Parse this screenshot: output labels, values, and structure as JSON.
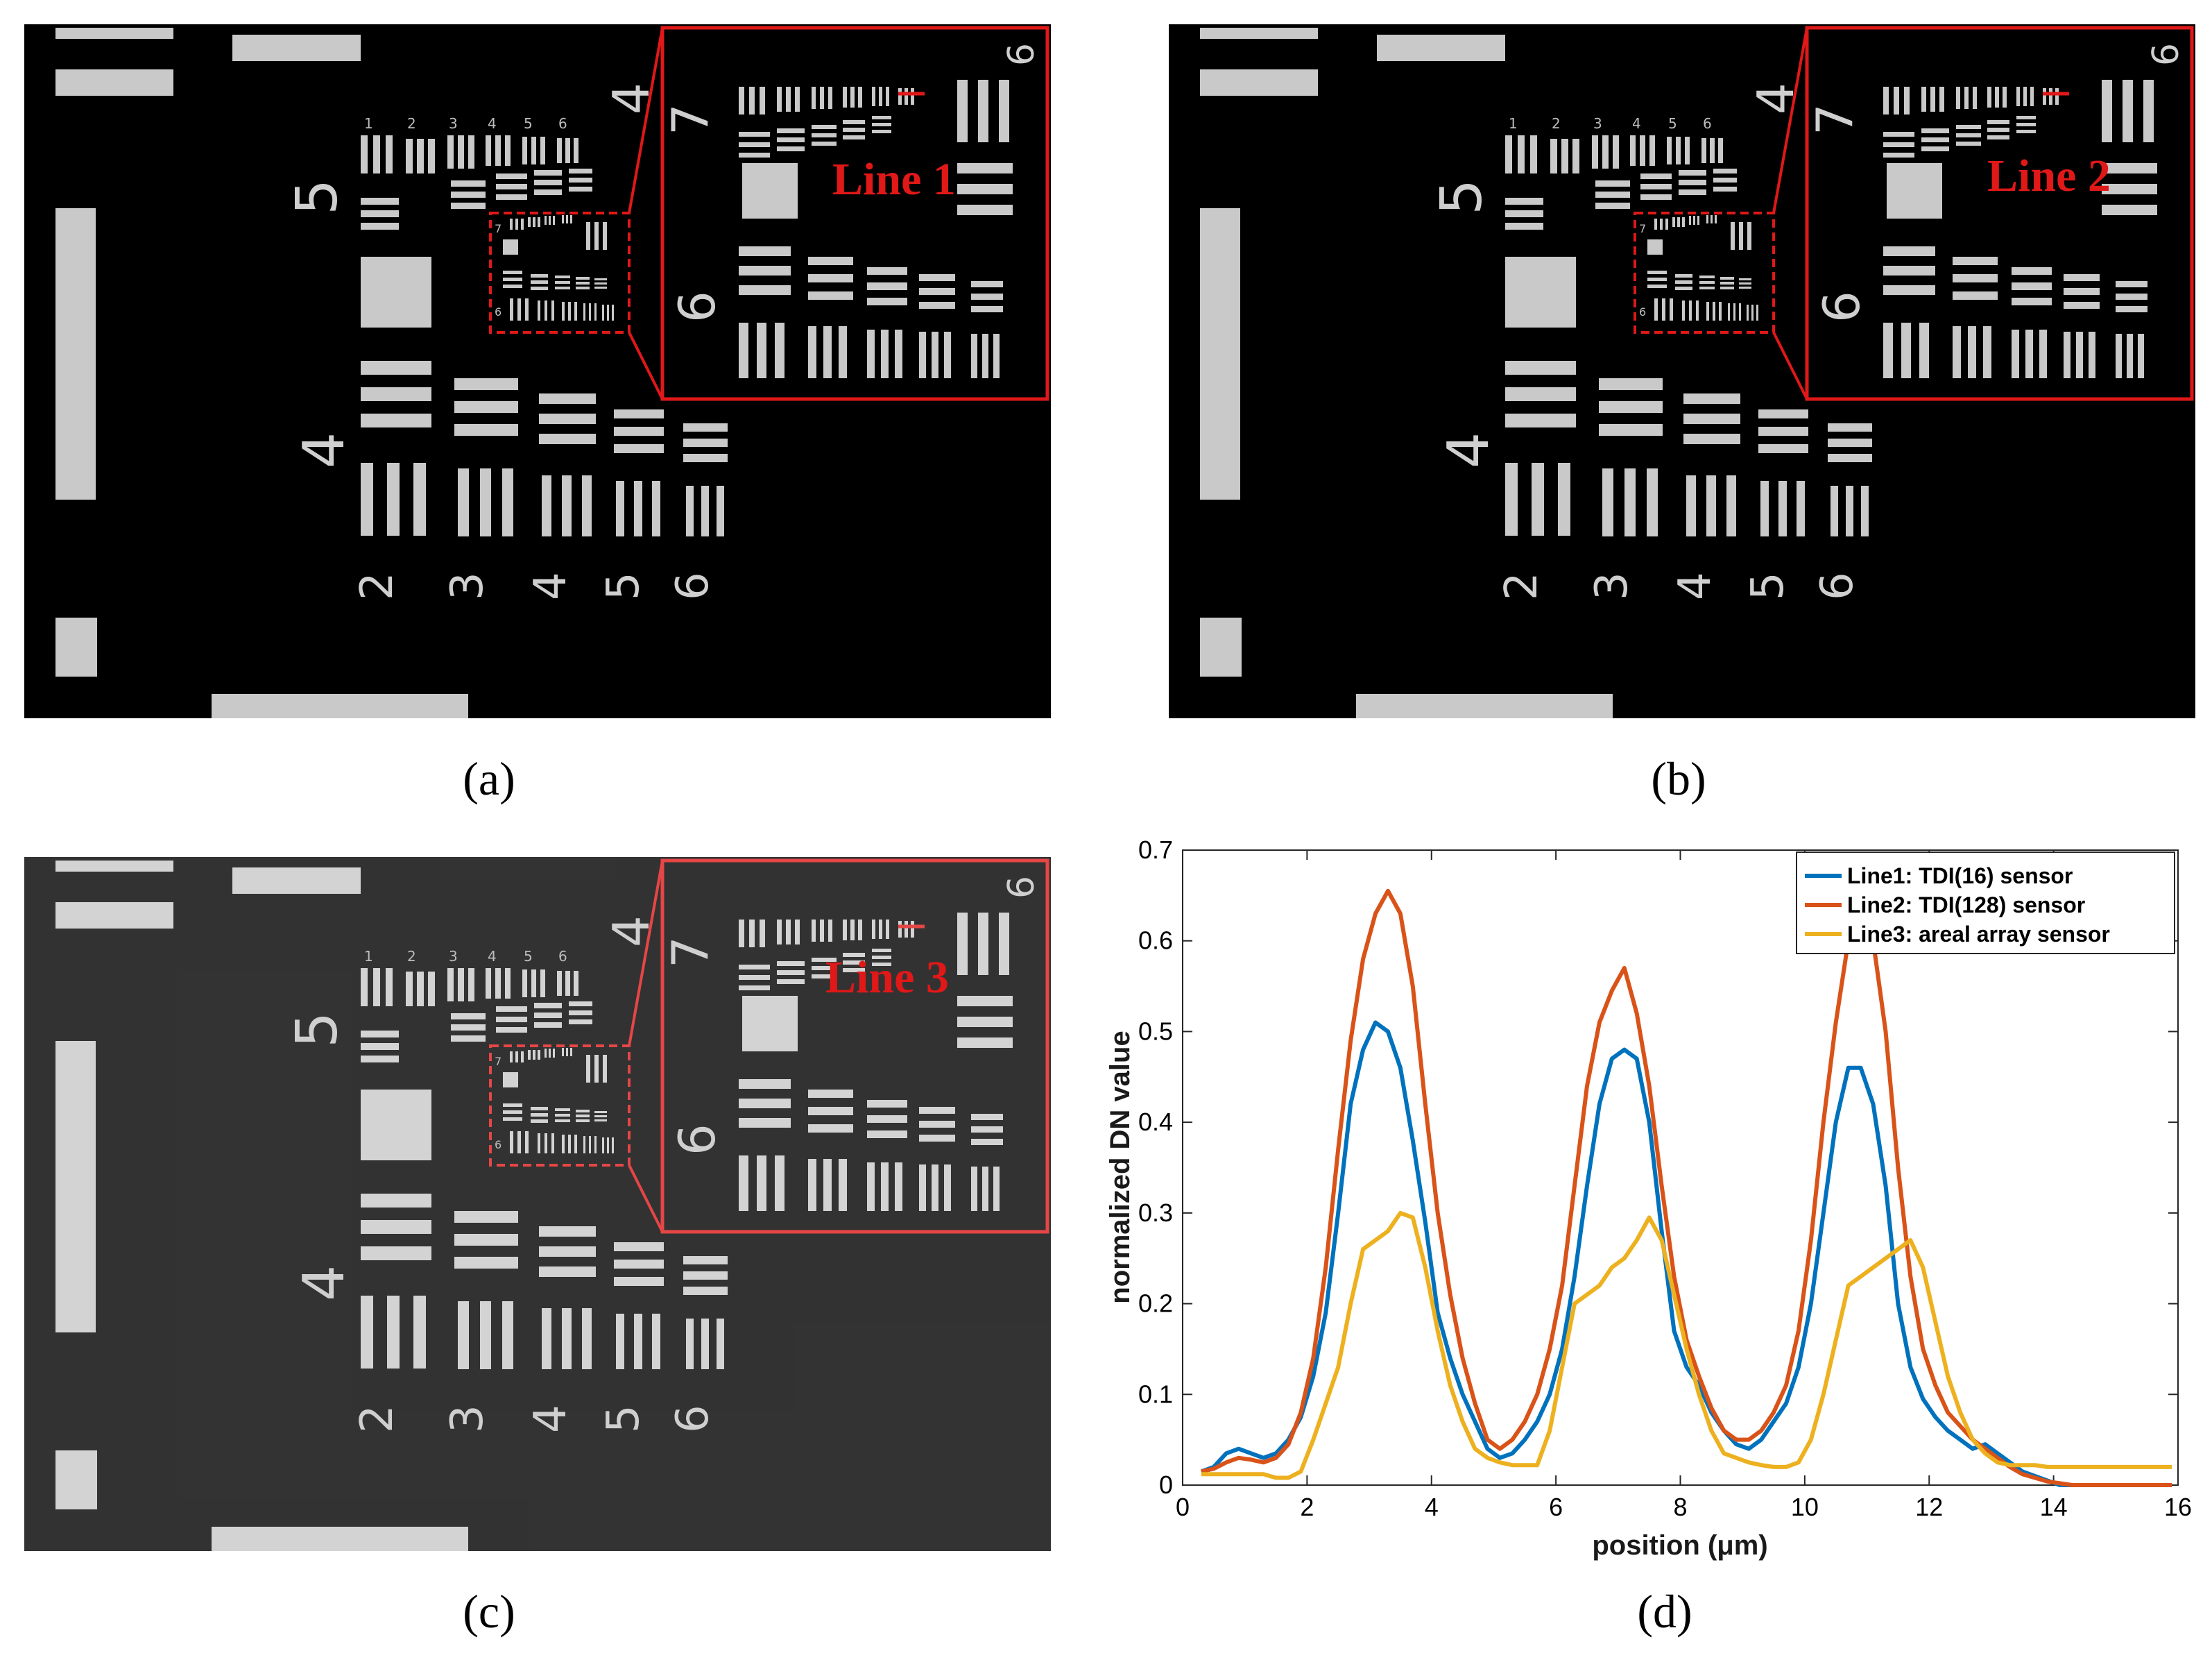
{
  "panels": [
    {
      "id": "a",
      "caption": "(a)",
      "line_label": "Line 1"
    },
    {
      "id": "b",
      "caption": "(b)",
      "line_label": "Line 2"
    },
    {
      "id": "c",
      "caption": "(c)",
      "line_label": "Line 3"
    }
  ],
  "target": {
    "groups": [
      "2",
      "3",
      "4",
      "5",
      "6"
    ],
    "row_digits": [
      "1",
      "2",
      "3",
      "4",
      "5",
      "6"
    ],
    "group_5": "5",
    "group_4": "4",
    "inset_7": "7",
    "inset_6": "6",
    "inset_6b": "6",
    "inset_4": "4",
    "mini_7": "7",
    "mini_6": "6"
  },
  "colors": {
    "line1": "#0072BD",
    "line2": "#D95319",
    "line3": "#EDB120",
    "annotation": "#e01818"
  },
  "chart_data": {
    "type": "line",
    "caption": "(d)",
    "xlabel": "position (μm)",
    "ylabel": "normalized DN value",
    "xlim": [
      0,
      16
    ],
    "ylim": [
      0,
      0.7
    ],
    "xticks": [
      0,
      2,
      4,
      6,
      8,
      10,
      12,
      14,
      16
    ],
    "yticks": [
      0,
      0.1,
      0.2,
      0.3,
      0.4,
      0.5,
      0.6,
      0.7
    ],
    "legend_position": "top-right",
    "x": [
      0.3,
      0.5,
      0.7,
      0.9,
      1.1,
      1.3,
      1.5,
      1.7,
      1.9,
      2.1,
      2.3,
      2.5,
      2.7,
      2.9,
      3.1,
      3.3,
      3.5,
      3.7,
      3.9,
      4.1,
      4.3,
      4.5,
      4.7,
      4.9,
      5.1,
      5.3,
      5.5,
      5.7,
      5.9,
      6.1,
      6.3,
      6.5,
      6.7,
      6.9,
      7.1,
      7.3,
      7.5,
      7.7,
      7.9,
      8.1,
      8.3,
      8.5,
      8.7,
      8.9,
      9.1,
      9.3,
      9.5,
      9.7,
      9.9,
      10.1,
      10.3,
      10.5,
      10.7,
      10.9,
      11.1,
      11.3,
      11.5,
      11.7,
      11.9,
      12.1,
      12.3,
      12.5,
      12.7,
      12.9,
      13.1,
      13.3,
      13.5,
      13.7,
      13.9,
      14.1,
      14.3,
      14.5,
      14.7,
      14.9,
      15.1,
      15.3,
      15.5,
      15.7,
      15.9
    ],
    "series": [
      {
        "name": "Line1: TDI(16) sensor",
        "color": "#0072BD",
        "values": [
          0.015,
          0.02,
          0.035,
          0.04,
          0.035,
          0.03,
          0.035,
          0.05,
          0.075,
          0.12,
          0.19,
          0.3,
          0.42,
          0.48,
          0.51,
          0.5,
          0.46,
          0.38,
          0.29,
          0.19,
          0.14,
          0.1,
          0.07,
          0.04,
          0.03,
          0.035,
          0.05,
          0.07,
          0.1,
          0.15,
          0.23,
          0.33,
          0.42,
          0.47,
          0.48,
          0.47,
          0.4,
          0.28,
          0.17,
          0.13,
          0.11,
          0.08,
          0.06,
          0.045,
          0.04,
          0.05,
          0.07,
          0.09,
          0.13,
          0.2,
          0.3,
          0.4,
          0.46,
          0.46,
          0.42,
          0.33,
          0.2,
          0.13,
          0.095,
          0.075,
          0.06,
          0.05,
          0.04,
          0.045,
          0.035,
          0.025,
          0.015,
          0.01,
          0.005,
          0.0,
          0.0,
          0.0,
          0.0,
          0.0,
          0.0,
          0.0,
          0.0,
          0.0,
          0.0
        ]
      },
      {
        "name": "Line2: TDI(128) sensor",
        "color": "#D95319",
        "values": [
          0.015,
          0.018,
          0.025,
          0.03,
          0.028,
          0.025,
          0.03,
          0.045,
          0.08,
          0.14,
          0.24,
          0.37,
          0.49,
          0.58,
          0.63,
          0.655,
          0.63,
          0.55,
          0.42,
          0.3,
          0.21,
          0.14,
          0.09,
          0.05,
          0.04,
          0.05,
          0.07,
          0.1,
          0.15,
          0.22,
          0.33,
          0.44,
          0.51,
          0.545,
          0.57,
          0.52,
          0.44,
          0.33,
          0.23,
          0.16,
          0.12,
          0.085,
          0.06,
          0.05,
          0.05,
          0.06,
          0.08,
          0.11,
          0.17,
          0.27,
          0.4,
          0.51,
          0.6,
          0.605,
          0.6,
          0.5,
          0.35,
          0.23,
          0.15,
          0.11,
          0.08,
          0.065,
          0.05,
          0.04,
          0.03,
          0.02,
          0.012,
          0.008,
          0.004,
          0.002,
          0.0,
          0.0,
          0.0,
          0.0,
          0.0,
          0.0,
          0.0,
          0.0,
          0.0
        ]
      },
      {
        "name": "Line3: areal array sensor",
        "color": "#EDB120",
        "values": [
          0.012,
          0.012,
          0.012,
          0.012,
          0.012,
          0.012,
          0.008,
          0.008,
          0.015,
          0.05,
          0.09,
          0.13,
          0.2,
          0.26,
          0.27,
          0.28,
          0.3,
          0.295,
          0.24,
          0.17,
          0.11,
          0.07,
          0.04,
          0.03,
          0.025,
          0.022,
          0.022,
          0.022,
          0.06,
          0.13,
          0.2,
          0.21,
          0.22,
          0.24,
          0.25,
          0.27,
          0.295,
          0.27,
          0.21,
          0.15,
          0.1,
          0.06,
          0.035,
          0.03,
          0.025,
          0.022,
          0.02,
          0.02,
          0.025,
          0.05,
          0.1,
          0.16,
          0.22,
          0.23,
          0.24,
          0.25,
          0.26,
          0.27,
          0.24,
          0.18,
          0.12,
          0.08,
          0.05,
          0.035,
          0.025,
          0.022,
          0.022,
          0.022,
          0.02,
          0.02,
          0.02,
          0.02,
          0.02,
          0.02,
          0.02,
          0.02,
          0.02,
          0.02,
          0.02
        ]
      }
    ]
  }
}
